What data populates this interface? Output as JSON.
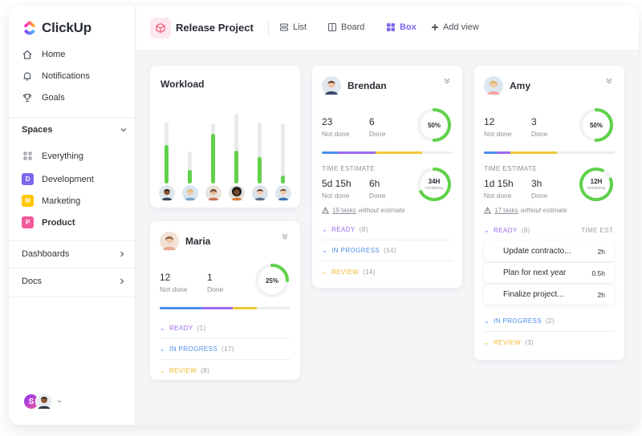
{
  "app": {
    "name": "ClickUp"
  },
  "sidebar": {
    "nav": [
      {
        "label": "Home",
        "icon": "home-icon"
      },
      {
        "label": "Notifications",
        "icon": "bell-icon"
      },
      {
        "label": "Goals",
        "icon": "trophy-icon"
      }
    ],
    "spaces_label": "Spaces",
    "spaces": [
      {
        "label": "Everything",
        "badge": "",
        "color": ""
      },
      {
        "label": "Development",
        "badge": "D",
        "color": "#7b68ee"
      },
      {
        "label": "Marketing",
        "badge": "M",
        "color": "#ffc800"
      },
      {
        "label": "Product",
        "badge": "P",
        "color": "#f25a9b"
      }
    ],
    "dashboards_label": "Dashboards",
    "docs_label": "Docs",
    "user_initial": "S"
  },
  "header": {
    "project_title": "Release Project",
    "views": [
      {
        "label": "List",
        "icon": "list-icon"
      },
      {
        "label": "Board",
        "icon": "board-icon"
      },
      {
        "label": "Box",
        "icon": "box-grid-icon"
      },
      {
        "label": "Add view",
        "icon": "plus-icon"
      }
    ],
    "active_view": "Box"
  },
  "workload": {
    "title": "Workload",
    "levels": [
      0.62,
      0.42,
      0.83,
      0.47,
      0.43,
      0.13
    ]
  },
  "maria": {
    "name": "Maria",
    "not_done": "12",
    "not_done_label": "Not done",
    "done": "1",
    "done_label": "Done",
    "percent_label": "25%",
    "percent": 25,
    "groups": [
      {
        "label": "READY",
        "count": "(1)"
      },
      {
        "label": "IN PROGRESS",
        "count": "(17)"
      },
      {
        "label": "REVIEW",
        "count": "(8)"
      }
    ]
  },
  "brendan": {
    "name": "Brendan",
    "not_done": "23",
    "not_done_label": "Not done",
    "done": "6",
    "done_label": "Done",
    "percent_label": "50%",
    "percent": 50,
    "time_estimate_label": "TIME ESTIMATE",
    "est_not_done": "5d 15h",
    "est_done": "6h",
    "ring_time": "34H",
    "ring_sub": "remaining",
    "warn_tasks": "19 tasks",
    "warn_text": "without estimate",
    "groups": [
      {
        "label": "READY",
        "count": "(8)"
      },
      {
        "label": "IN PROGRESS",
        "count": "(14)"
      },
      {
        "label": "REVIEW",
        "count": "(14)"
      }
    ]
  },
  "amy": {
    "name": "Amy",
    "not_done": "12",
    "not_done_label": "Not done",
    "done": "3",
    "done_label": "Done",
    "percent_label": "50%",
    "percent": 50,
    "time_estimate_label": "TIME ESTIMATE",
    "est_not_done": "1d 15h",
    "est_done": "3h",
    "ring_time": "12H",
    "ring_sub": "remaining",
    "warn_tasks": "17 tasks",
    "warn_text": "without estimate",
    "ready": {
      "label": "READY",
      "count": "(8)",
      "time_header": "TIME EST."
    },
    "tasks": [
      {
        "name": "Update contracto...",
        "hours": "2h"
      },
      {
        "name": "Plan for next year",
        "hours": "0.5h"
      },
      {
        "name": "Finalize project...",
        "hours": "2h"
      }
    ],
    "groups": [
      {
        "label": "IN PROGRESS",
        "count": "(2)"
      },
      {
        "label": "REVIEW",
        "count": "(3)"
      }
    ]
  },
  "colors": {
    "accent": "#7b68ee",
    "green": "#5fd14a",
    "purple": "#9b6cf0",
    "blue": "#4a8ee8",
    "yellow": "#f0b92f"
  }
}
